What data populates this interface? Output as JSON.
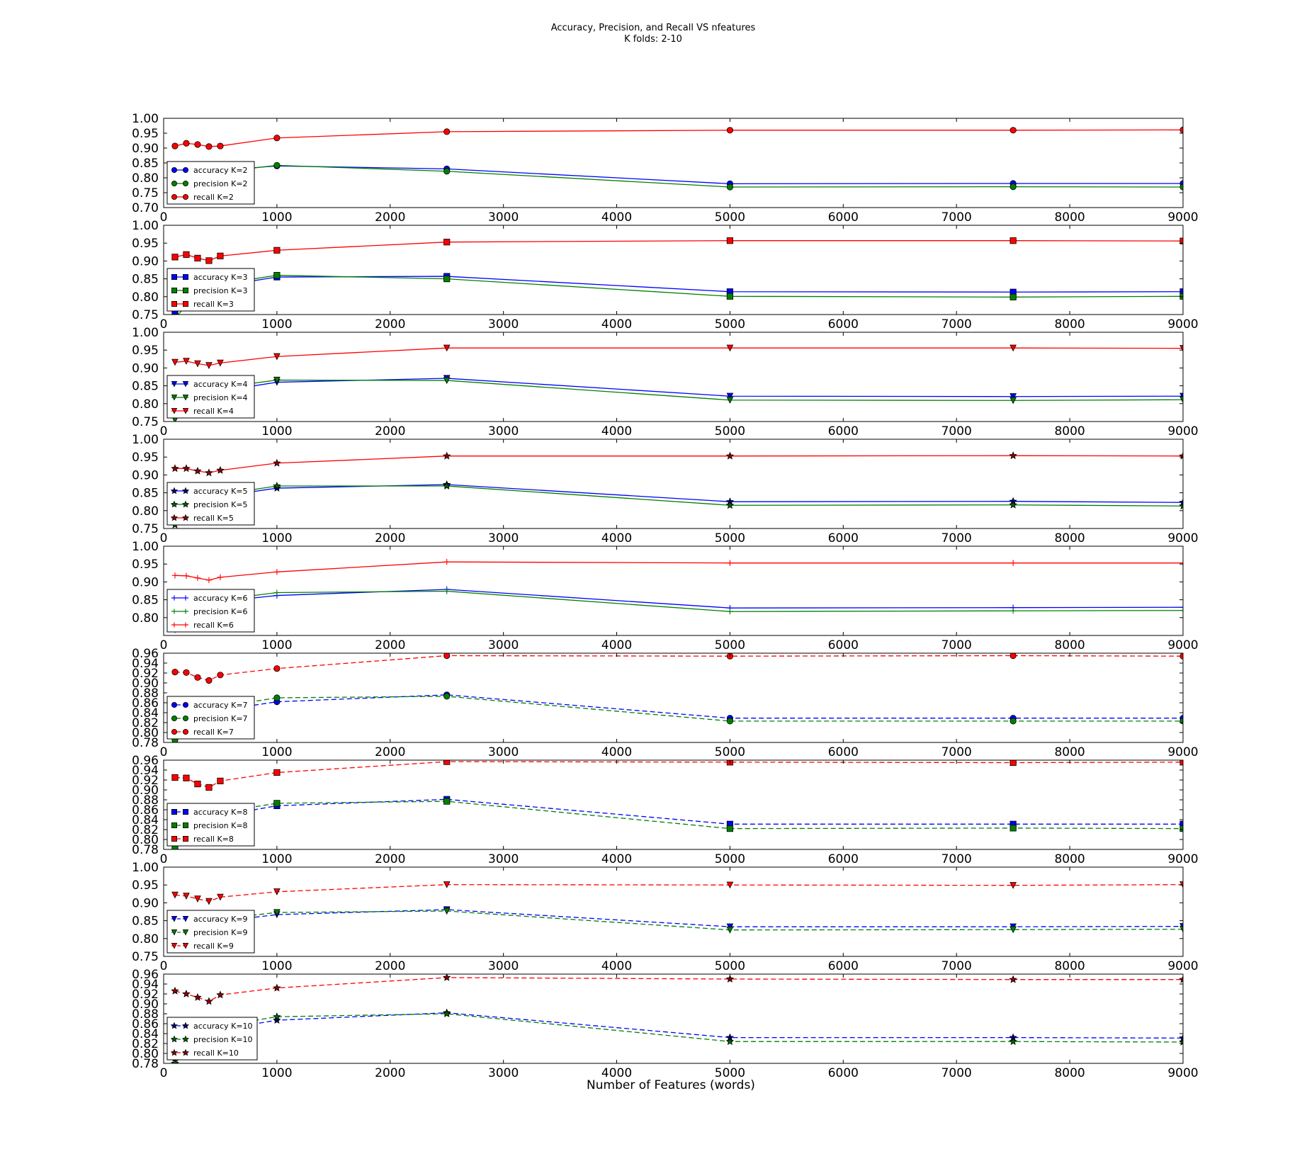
{
  "figure": {
    "title_line1": "Accuracy, Precision, and Recall VS nfeatures",
    "title_line2": "K folds: 2-10",
    "xlabel": "Number of Features (words)"
  },
  "colors": {
    "accuracy": "#0000ff",
    "precision": "#008000",
    "recall": "#ff0000",
    "recall_star": "#8b0000"
  },
  "chart_data": [
    {
      "type": "line",
      "k": 2,
      "marker": "circle",
      "linestyle": "solid",
      "xlim": [
        0,
        9000
      ],
      "ylim": [
        0.7,
        1.0
      ],
      "xticks": [
        0,
        1000,
        2000,
        3000,
        4000,
        5000,
        6000,
        7000,
        8000,
        9000
      ],
      "yticks": [
        0.7,
        0.75,
        0.8,
        0.85,
        0.9,
        0.95,
        1.0
      ],
      "legend": "lower-left",
      "x": [
        100,
        200,
        300,
        400,
        500,
        1000,
        2500,
        5000,
        7500,
        9000
      ],
      "series": [
        {
          "name": "accuracy K=2",
          "values": [
            0.775,
            0.795,
            0.805,
            0.815,
            0.825,
            0.84,
            0.83,
            0.78,
            0.781,
            0.781
          ]
        },
        {
          "name": "precision K=2",
          "values": [
            0.74,
            0.77,
            0.795,
            0.81,
            0.82,
            0.842,
            0.822,
            0.769,
            0.77,
            0.769
          ]
        },
        {
          "name": "recall K=2",
          "values": [
            0.907,
            0.916,
            0.912,
            0.905,
            0.907,
            0.934,
            0.955,
            0.96,
            0.96,
            0.961
          ]
        }
      ]
    },
    {
      "type": "line",
      "k": 3,
      "marker": "square",
      "linestyle": "solid",
      "xlim": [
        0,
        9000
      ],
      "ylim": [
        0.75,
        1.0
      ],
      "xticks": [
        0,
        1000,
        2000,
        3000,
        4000,
        5000,
        6000,
        7000,
        8000,
        9000
      ],
      "yticks": [
        0.75,
        0.8,
        0.85,
        0.9,
        0.95,
        1.0
      ],
      "legend": "lower-left",
      "x": [
        100,
        200,
        300,
        400,
        500,
        1000,
        2500,
        5000,
        7500,
        9000
      ],
      "series": [
        {
          "name": "accuracy K=3",
          "values": [
            0.76,
            0.79,
            0.81,
            0.82,
            0.83,
            0.855,
            0.857,
            0.814,
            0.813,
            0.814
          ]
        },
        {
          "name": "precision K=3",
          "values": [
            0.74,
            0.775,
            0.805,
            0.82,
            0.835,
            0.86,
            0.85,
            0.801,
            0.799,
            0.801
          ]
        },
        {
          "name": "recall K=3",
          "values": [
            0.911,
            0.918,
            0.908,
            0.901,
            0.914,
            0.93,
            0.953,
            0.957,
            0.957,
            0.956
          ]
        }
      ]
    },
    {
      "type": "line",
      "k": 4,
      "marker": "triangle-down",
      "linestyle": "solid",
      "xlim": [
        0,
        9000
      ],
      "ylim": [
        0.75,
        1.0
      ],
      "xticks": [
        0,
        1000,
        2000,
        3000,
        4000,
        5000,
        6000,
        7000,
        8000,
        9000
      ],
      "yticks": [
        0.75,
        0.8,
        0.85,
        0.9,
        0.95,
        1.0
      ],
      "legend": "lower-left",
      "x": [
        100,
        200,
        300,
        400,
        500,
        1000,
        2500,
        5000,
        7500,
        9000
      ],
      "series": [
        {
          "name": "accuracy K=4",
          "values": [
            0.775,
            0.8,
            0.815,
            0.825,
            0.835,
            0.86,
            0.871,
            0.821,
            0.82,
            0.821
          ]
        },
        {
          "name": "precision K=4",
          "values": [
            0.755,
            0.79,
            0.815,
            0.83,
            0.845,
            0.866,
            0.865,
            0.81,
            0.809,
            0.811
          ]
        },
        {
          "name": "recall K=4",
          "values": [
            0.916,
            0.919,
            0.912,
            0.907,
            0.914,
            0.932,
            0.956,
            0.956,
            0.956,
            0.955
          ]
        }
      ]
    },
    {
      "type": "line",
      "k": 5,
      "marker": "star",
      "linestyle": "solid",
      "xlim": [
        0,
        9000
      ],
      "ylim": [
        0.75,
        1.0
      ],
      "xticks": [
        0,
        1000,
        2000,
        3000,
        4000,
        5000,
        6000,
        7000,
        8000,
        9000
      ],
      "yticks": [
        0.75,
        0.8,
        0.85,
        0.9,
        0.95,
        1.0
      ],
      "legend": "lower-left",
      "x": [
        100,
        200,
        300,
        400,
        500,
        1000,
        2500,
        5000,
        7500,
        9000
      ],
      "series": [
        {
          "name": "accuracy K=5",
          "values": [
            0.78,
            0.805,
            0.82,
            0.83,
            0.84,
            0.863,
            0.873,
            0.825,
            0.826,
            0.823
          ]
        },
        {
          "name": "precision K=5",
          "values": [
            0.76,
            0.795,
            0.82,
            0.835,
            0.845,
            0.869,
            0.869,
            0.815,
            0.816,
            0.813
          ]
        },
        {
          "name": "recall K=5",
          "values": [
            0.918,
            0.918,
            0.911,
            0.906,
            0.913,
            0.933,
            0.953,
            0.953,
            0.954,
            0.953
          ]
        }
      ]
    },
    {
      "type": "line",
      "k": 6,
      "marker": "plus",
      "linestyle": "solid",
      "xlim": [
        0,
        9000
      ],
      "ylim": [
        0.75,
        1.0
      ],
      "xticks": [
        0,
        1000,
        2000,
        3000,
        4000,
        5000,
        6000,
        7000,
        8000,
        9000
      ],
      "yticks": [
        0.8,
        0.85,
        0.9,
        0.95,
        1.0
      ],
      "legend": "lower-left",
      "x": [
        100,
        200,
        300,
        400,
        500,
        1000,
        2500,
        5000,
        7500,
        9000
      ],
      "series": [
        {
          "name": "accuracy K=6",
          "values": [
            0.785,
            0.81,
            0.825,
            0.835,
            0.845,
            0.862,
            0.879,
            0.827,
            0.828,
            0.829
          ]
        },
        {
          "name": "precision K=6",
          "values": [
            0.765,
            0.8,
            0.825,
            0.84,
            0.85,
            0.87,
            0.874,
            0.817,
            0.819,
            0.82
          ]
        },
        {
          "name": "recall K=6",
          "values": [
            0.918,
            0.917,
            0.911,
            0.905,
            0.913,
            0.928,
            0.956,
            0.953,
            0.953,
            0.953
          ]
        }
      ]
    },
    {
      "type": "line",
      "k": 7,
      "marker": "circle",
      "linestyle": "dashed",
      "xlim": [
        0,
        9000
      ],
      "ylim": [
        0.78,
        0.96
      ],
      "xticks": [
        0,
        1000,
        2000,
        3000,
        4000,
        5000,
        6000,
        7000,
        8000,
        9000
      ],
      "yticks": [
        0.78,
        0.8,
        0.82,
        0.84,
        0.86,
        0.88,
        0.9,
        0.92,
        0.94,
        0.96
      ],
      "legend": "lower-left",
      "x": [
        100,
        200,
        300,
        400,
        500,
        1000,
        2500,
        5000,
        7500,
        9000
      ],
      "series": [
        {
          "name": "accuracy K=7",
          "values": [
            0.795,
            0.812,
            0.826,
            0.836,
            0.845,
            0.862,
            0.876,
            0.829,
            0.829,
            0.829
          ]
        },
        {
          "name": "precision K=7",
          "values": [
            0.785,
            0.808,
            0.828,
            0.842,
            0.852,
            0.87,
            0.873,
            0.823,
            0.823,
            0.823
          ]
        },
        {
          "name": "recall K=7",
          "values": [
            0.922,
            0.921,
            0.911,
            0.905,
            0.916,
            0.929,
            0.955,
            0.954,
            0.955,
            0.954
          ]
        }
      ]
    },
    {
      "type": "line",
      "k": 8,
      "marker": "square",
      "linestyle": "dashed",
      "xlim": [
        0,
        9000
      ],
      "ylim": [
        0.78,
        0.96
      ],
      "xticks": [
        0,
        1000,
        2000,
        3000,
        4000,
        5000,
        6000,
        7000,
        8000,
        9000
      ],
      "yticks": [
        0.78,
        0.8,
        0.82,
        0.84,
        0.86,
        0.88,
        0.9,
        0.92,
        0.94,
        0.96
      ],
      "legend": "lower-left",
      "x": [
        100,
        200,
        300,
        400,
        500,
        1000,
        2500,
        5000,
        7500,
        9000
      ],
      "series": [
        {
          "name": "accuracy K=8",
          "values": [
            0.795,
            0.812,
            0.825,
            0.838,
            0.848,
            0.868,
            0.881,
            0.831,
            0.831,
            0.831
          ]
        },
        {
          "name": "precision K=8",
          "values": [
            0.785,
            0.808,
            0.828,
            0.845,
            0.855,
            0.873,
            0.877,
            0.822,
            0.823,
            0.822
          ]
        },
        {
          "name": "recall K=8",
          "values": [
            0.925,
            0.924,
            0.912,
            0.905,
            0.918,
            0.935,
            0.957,
            0.956,
            0.955,
            0.956
          ]
        }
      ]
    },
    {
      "type": "line",
      "k": 9,
      "marker": "triangle-down",
      "linestyle": "dashed",
      "xlim": [
        0,
        9000
      ],
      "ylim": [
        0.75,
        1.0
      ],
      "xticks": [
        0,
        1000,
        2000,
        3000,
        4000,
        5000,
        6000,
        7000,
        8000,
        9000
      ],
      "yticks": [
        0.75,
        0.8,
        0.85,
        0.9,
        0.95,
        1.0
      ],
      "legend": "lower-left",
      "x": [
        100,
        200,
        300,
        400,
        500,
        1000,
        2500,
        5000,
        7500,
        9000
      ],
      "series": [
        {
          "name": "accuracy K=9",
          "values": [
            0.785,
            0.81,
            0.825,
            0.838,
            0.848,
            0.867,
            0.881,
            0.833,
            0.833,
            0.834
          ]
        },
        {
          "name": "precision K=9",
          "values": [
            0.775,
            0.805,
            0.828,
            0.845,
            0.855,
            0.873,
            0.877,
            0.824,
            0.825,
            0.826
          ]
        },
        {
          "name": "recall K=9",
          "values": [
            0.922,
            0.919,
            0.911,
            0.904,
            0.916,
            0.931,
            0.951,
            0.95,
            0.949,
            0.951
          ]
        }
      ]
    },
    {
      "type": "line",
      "k": 10,
      "marker": "star",
      "linestyle": "dashed",
      "xlim": [
        0,
        9000
      ],
      "ylim": [
        0.78,
        0.96
      ],
      "xticks": [
        0,
        1000,
        2000,
        3000,
        4000,
        5000,
        6000,
        7000,
        8000,
        9000
      ],
      "yticks": [
        0.78,
        0.8,
        0.82,
        0.84,
        0.86,
        0.88,
        0.9,
        0.92,
        0.94,
        0.96
      ],
      "legend": "lower-left",
      "x": [
        100,
        200,
        300,
        400,
        500,
        1000,
        2500,
        5000,
        7500,
        9000
      ],
      "series": [
        {
          "name": "accuracy K=10",
          "values": [
            0.79,
            0.812,
            0.826,
            0.838,
            0.848,
            0.867,
            0.882,
            0.832,
            0.832,
            0.831
          ]
        },
        {
          "name": "precision K=10",
          "values": [
            0.78,
            0.806,
            0.828,
            0.845,
            0.855,
            0.874,
            0.88,
            0.824,
            0.824,
            0.823
          ]
        },
        {
          "name": "recall K=10",
          "values": [
            0.926,
            0.92,
            0.913,
            0.905,
            0.918,
            0.932,
            0.953,
            0.95,
            0.949,
            0.949
          ]
        }
      ]
    }
  ]
}
